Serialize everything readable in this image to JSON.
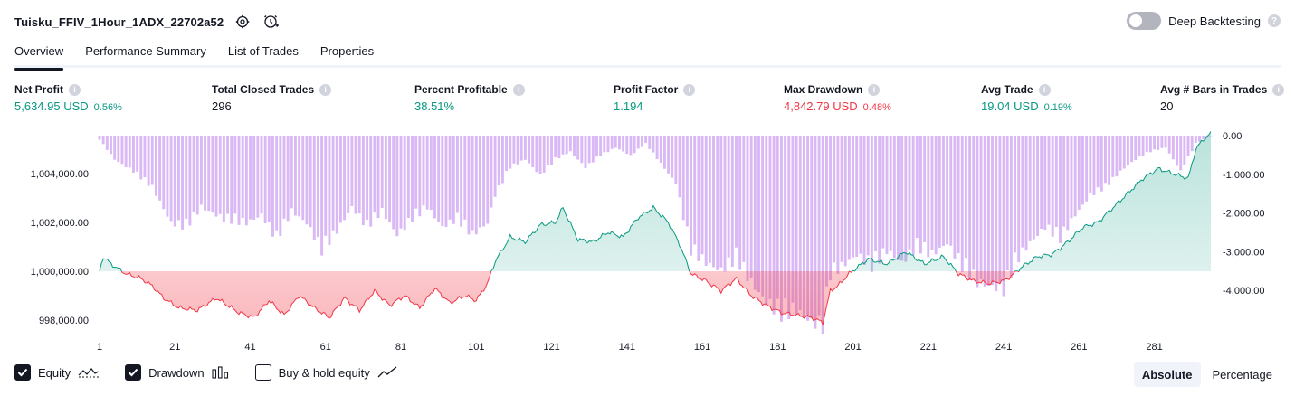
{
  "header": {
    "strategy_name": "Tuisku_FFIV_1Hour_1ADX_22702a52",
    "deep_backtesting_label": "Deep Backtesting",
    "deep_backtesting_on": false
  },
  "tabs": [
    {
      "label": "Overview",
      "active": true
    },
    {
      "label": "Performance Summary",
      "active": false
    },
    {
      "label": "List of Trades",
      "active": false
    },
    {
      "label": "Properties",
      "active": false
    }
  ],
  "metrics": {
    "net_profit": {
      "label": "Net Profit",
      "value": "5,634.95 USD",
      "pct": "0.56%"
    },
    "total_closed_trades": {
      "label": "Total Closed Trades",
      "value": "296"
    },
    "percent_profitable": {
      "label": "Percent Profitable",
      "value": "38.51%"
    },
    "profit_factor": {
      "label": "Profit Factor",
      "value": "1.194"
    },
    "max_drawdown": {
      "label": "Max Drawdown",
      "value": "4,842.79 USD",
      "pct": "0.48%"
    },
    "avg_trade": {
      "label": "Avg Trade",
      "value": "19.04 USD",
      "pct": "0.19%"
    },
    "avg_bars": {
      "label": "Avg # Bars in Trades",
      "value": "20"
    }
  },
  "colors": {
    "positive": "#089981",
    "negative": "#f23645",
    "drawdown_bar": "#d9b8f5",
    "equity_fill_up": "#cdeee6",
    "equity_fill_down": "#f8c2c8"
  },
  "chart_data": {
    "type": "area",
    "left_axis_ticks": [
      "1,004,000.00",
      "1,002,000.00",
      "1,000,000.00",
      "998,000.00"
    ],
    "left_axis_values": [
      1004000,
      1002000,
      1000000,
      998000
    ],
    "right_axis_ticks": [
      "0.00",
      "-1,000.00",
      "-2,000.00",
      "-3,000.00",
      "-4,000.00"
    ],
    "right_axis_values": [
      0,
      -1000,
      -2000,
      -3000,
      -4000
    ],
    "x_ticks": [
      "1",
      "21",
      "41",
      "61",
      "81",
      "101",
      "121",
      "141",
      "161",
      "181",
      "201",
      "221",
      "241",
      "261",
      "281"
    ],
    "x_tick_values": [
      1,
      21,
      41,
      61,
      81,
      101,
      121,
      141,
      161,
      181,
      201,
      221,
      241,
      261,
      281
    ],
    "x_range": [
      1,
      296
    ],
    "equity_baseline": 1000000,
    "equity_keypoints": [
      [
        1,
        1000000
      ],
      [
        2,
        1000600
      ],
      [
        4,
        1000300
      ],
      [
        8,
        999900
      ],
      [
        12,
        999700
      ],
      [
        15,
        999400
      ],
      [
        18,
        998900
      ],
      [
        22,
        998500
      ],
      [
        27,
        998400
      ],
      [
        32,
        998900
      ],
      [
        38,
        998300
      ],
      [
        42,
        998100
      ],
      [
        46,
        998800
      ],
      [
        50,
        998200
      ],
      [
        54,
        999000
      ],
      [
        58,
        998500
      ],
      [
        62,
        998100
      ],
      [
        66,
        998900
      ],
      [
        70,
        998400
      ],
      [
        74,
        999200
      ],
      [
        78,
        998600
      ],
      [
        82,
        999000
      ],
      [
        86,
        998500
      ],
      [
        90,
        999300
      ],
      [
        94,
        998700
      ],
      [
        98,
        999000
      ],
      [
        101,
        998800
      ],
      [
        104,
        999500
      ],
      [
        106,
        1000400
      ],
      [
        110,
        1001400
      ],
      [
        114,
        1001200
      ],
      [
        118,
        1001900
      ],
      [
        122,
        1002000
      ],
      [
        124,
        1002600
      ],
      [
        128,
        1001300
      ],
      [
        132,
        1001200
      ],
      [
        136,
        1001600
      ],
      [
        140,
        1001400
      ],
      [
        144,
        1002200
      ],
      [
        148,
        1002600
      ],
      [
        152,
        1002000
      ],
      [
        155,
        1001100
      ],
      [
        158,
        999900
      ],
      [
        162,
        999600
      ],
      [
        166,
        999200
      ],
      [
        170,
        999700
      ],
      [
        174,
        999000
      ],
      [
        178,
        998600
      ],
      [
        182,
        998300
      ],
      [
        186,
        998200
      ],
      [
        190,
        998100
      ],
      [
        193,
        997900
      ],
      [
        195,
        999200
      ],
      [
        197,
        999400
      ],
      [
        200,
        999900
      ],
      [
        205,
        1000500
      ],
      [
        210,
        1000300
      ],
      [
        215,
        1000800
      ],
      [
        220,
        1000300
      ],
      [
        225,
        1000600
      ],
      [
        229,
        999900
      ],
      [
        233,
        999600
      ],
      [
        237,
        999500
      ],
      [
        241,
        999600
      ],
      [
        243,
        999800
      ],
      [
        246,
        1000200
      ],
      [
        250,
        1000600
      ],
      [
        254,
        1000700
      ],
      [
        258,
        1001200
      ],
      [
        262,
        1001800
      ],
      [
        266,
        1002000
      ],
      [
        270,
        1002600
      ],
      [
        274,
        1003200
      ],
      [
        278,
        1003800
      ],
      [
        282,
        1004200
      ],
      [
        286,
        1004000
      ],
      [
        290,
        1003800
      ],
      [
        292,
        1005000
      ],
      [
        294,
        1005400
      ],
      [
        296,
        1005634.95
      ]
    ],
    "drawdown_keypoints": [
      [
        1,
        -100
      ],
      [
        5,
        -600
      ],
      [
        10,
        -900
      ],
      [
        15,
        -1300
      ],
      [
        20,
        -2200
      ],
      [
        24,
        -2300
      ],
      [
        28,
        -1800
      ],
      [
        34,
        -2100
      ],
      [
        40,
        -2200
      ],
      [
        44,
        -2000
      ],
      [
        48,
        -2600
      ],
      [
        52,
        -1900
      ],
      [
        56,
        -2200
      ],
      [
        60,
        -2900
      ],
      [
        64,
        -2400
      ],
      [
        68,
        -1800
      ],
      [
        72,
        -2300
      ],
      [
        76,
        -1900
      ],
      [
        80,
        -2500
      ],
      [
        84,
        -2100
      ],
      [
        88,
        -1800
      ],
      [
        92,
        -2300
      ],
      [
        96,
        -2100
      ],
      [
        100,
        -2500
      ],
      [
        104,
        -2200
      ],
      [
        106,
        -1500
      ],
      [
        110,
        -800
      ],
      [
        114,
        -600
      ],
      [
        118,
        -1000
      ],
      [
        122,
        -600
      ],
      [
        126,
        -400
      ],
      [
        130,
        -800
      ],
      [
        134,
        -500
      ],
      [
        138,
        -300
      ],
      [
        142,
        -500
      ],
      [
        146,
        -200
      ],
      [
        150,
        -700
      ],
      [
        154,
        -1200
      ],
      [
        158,
        -2900
      ],
      [
        162,
        -3200
      ],
      [
        166,
        -3400
      ],
      [
        170,
        -3100
      ],
      [
        174,
        -3700
      ],
      [
        178,
        -4200
      ],
      [
        182,
        -4500
      ],
      [
        186,
        -4400
      ],
      [
        190,
        -4700
      ],
      [
        193,
        -4800
      ],
      [
        195,
        -3500
      ],
      [
        198,
        -3300
      ],
      [
        202,
        -3000
      ],
      [
        206,
        -3300
      ],
      [
        210,
        -2900
      ],
      [
        214,
        -3200
      ],
      [
        218,
        -2800
      ],
      [
        222,
        -3000
      ],
      [
        226,
        -2700
      ],
      [
        230,
        -3300
      ],
      [
        234,
        -3700
      ],
      [
        238,
        -3800
      ],
      [
        241,
        -3900
      ],
      [
        244,
        -3200
      ],
      [
        248,
        -2700
      ],
      [
        252,
        -2300
      ],
      [
        256,
        -2600
      ],
      [
        260,
        -2000
      ],
      [
        264,
        -1500
      ],
      [
        268,
        -1300
      ],
      [
        272,
        -900
      ],
      [
        276,
        -600
      ],
      [
        280,
        -400
      ],
      [
        284,
        -300
      ],
      [
        288,
        -900
      ],
      [
        292,
        -200
      ],
      [
        294,
        -100
      ],
      [
        296,
        0
      ]
    ]
  },
  "footer": {
    "equity_label": "Equity",
    "drawdown_label": "Drawdown",
    "buy_hold_label": "Buy & hold equity",
    "equity_checked": true,
    "drawdown_checked": true,
    "buy_hold_checked": false,
    "absolute_label": "Absolute",
    "percentage_label": "Percentage",
    "active_mode": "Absolute"
  }
}
